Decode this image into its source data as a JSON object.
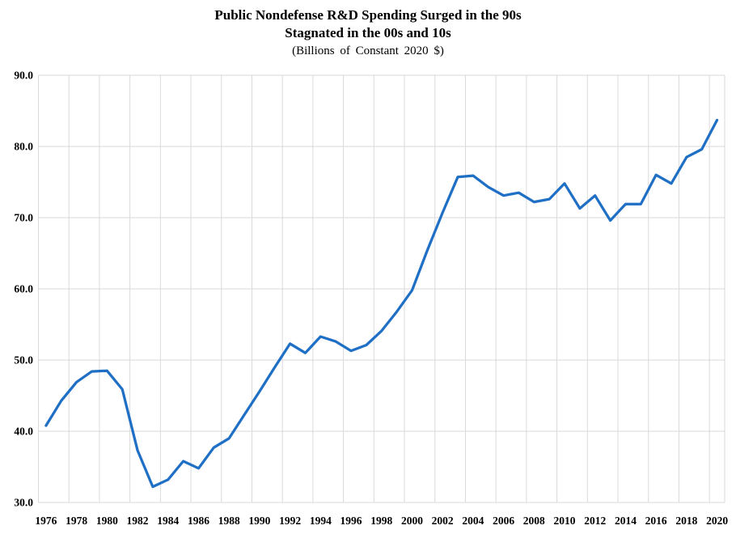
{
  "chart_data": {
    "type": "line",
    "title": "Public Nondefense R&D Spending Surged in the 90s",
    "subtitle": "Stagnated in the 00s and 10s",
    "units_label": "(Billions of Constant 2020 $)",
    "xlabel": "",
    "ylabel": "",
    "x": [
      1976,
      1977,
      1978,
      1979,
      1980,
      1981,
      1982,
      1983,
      1984,
      1985,
      1986,
      1987,
      1988,
      1989,
      1990,
      1991,
      1992,
      1993,
      1994,
      1995,
      1996,
      1997,
      1998,
      1999,
      2000,
      2001,
      2002,
      2003,
      2004,
      2005,
      2006,
      2007,
      2008,
      2009,
      2010,
      2011,
      2012,
      2013,
      2014,
      2015,
      2016,
      2017,
      2018,
      2019,
      2020
    ],
    "series": [
      {
        "name": "Public Nondefense R&D Spending (Billions of Constant 2020 $)",
        "values": [
          40.8,
          44.3,
          46.9,
          48.4,
          48.5,
          45.9,
          37.3,
          32.2,
          33.2,
          35.8,
          34.8,
          37.7,
          39.0,
          42.3,
          45.6,
          49.0,
          52.3,
          51.0,
          53.3,
          52.6,
          51.3,
          52.1,
          54.1,
          56.8,
          59.8,
          65.4,
          70.7,
          75.7,
          75.9,
          74.3,
          73.1,
          73.5,
          72.2,
          72.6,
          74.8,
          71.3,
          73.1,
          69.6,
          71.9,
          71.9,
          76.0,
          74.8,
          78.5,
          79.6,
          83.7
        ]
      }
    ],
    "ylim": [
      30,
      90
    ],
    "ytick_labels": [
      "30.0",
      "40.0",
      "50.0",
      "60.0",
      "70.0",
      "80.0",
      "90.0"
    ],
    "xtick_labels": [
      "1976",
      "1978",
      "1980",
      "1982",
      "1984",
      "1986",
      "1988",
      "1990",
      "1992",
      "1994",
      "1996",
      "1998",
      "2000",
      "2002",
      "2004",
      "2006",
      "2008",
      "2010",
      "2012",
      "2014",
      "2016",
      "2018",
      "2020"
    ],
    "grid": true,
    "legend_position": "none",
    "colors": {
      "line": "#1F6FC5",
      "gridline": "#D9D9D9",
      "text": "#000000",
      "background": "#FFFFFF"
    }
  }
}
